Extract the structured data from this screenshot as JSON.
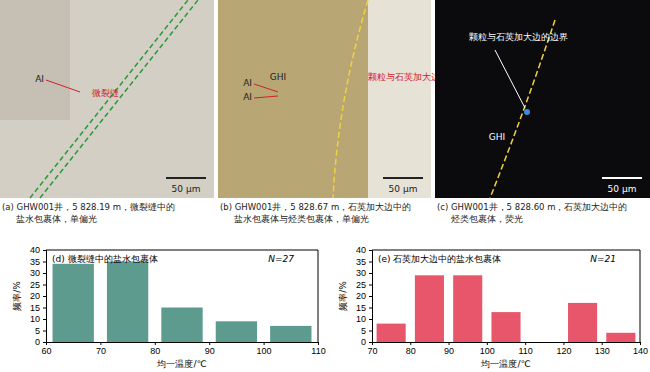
{
  "chart_data": [
    {
      "type": "histogram",
      "title": "(d) 微裂缝中的盐水包裹体",
      "annotation": "N=27",
      "x_label": "均一温度/℃",
      "y_label": "频率/%",
      "bins": [
        60,
        70,
        80,
        90,
        100,
        110
      ],
      "values": [
        34,
        35,
        15,
        9,
        7
      ],
      "color": "#5e9b8f",
      "xlim": [
        60,
        110
      ],
      "xticks": [
        60,
        70,
        80,
        90,
        100,
        110
      ],
      "ylim": [
        0,
        40
      ],
      "yticks": [
        0,
        5,
        10,
        15,
        20,
        25,
        30,
        35,
        40
      ]
    },
    {
      "type": "histogram",
      "title": "(e) 石英加大边中的盐水包裹体",
      "annotation": "N=21",
      "x_label": "均一温度/℃",
      "y_label": "频率/%",
      "bins": [
        70,
        80,
        90,
        100,
        110,
        120,
        130,
        140
      ],
      "values": [
        8,
        29,
        29,
        13,
        0,
        17,
        4
      ],
      "color": "#e8566b",
      "xlim": [
        70,
        140
      ],
      "xticks": [
        70,
        80,
        90,
        100,
        110,
        120,
        130,
        140
      ],
      "ylim": [
        0,
        40
      ],
      "yticks": [
        0,
        5,
        10,
        15,
        20,
        25,
        30,
        35,
        40
      ]
    }
  ],
  "images": [
    {
      "caption": [
        "(a) GHW001井，5 828.19 m，微裂缝中的",
        "盐水包裹体，单偏光"
      ],
      "labels": [
        "AI",
        "微裂缝"
      ],
      "scale_bar": "50 μm"
    },
    {
      "caption": [
        "(b) GHW001井，5 828.67 m，石英加大边中的",
        "盐水包裹体与烃类包裹体，单偏光"
      ],
      "labels": [
        "AI",
        "AI",
        "GHI",
        "颗粒与石英加大边的边界"
      ],
      "scale_bar": "50 μm"
    },
    {
      "caption": [
        "(c) GHW001井，5 828.60 m，石英加大边中的",
        "烃类包裹体，荧光"
      ],
      "labels": [
        "颗粒与石英加大边的边界",
        "GHI"
      ],
      "scale_bar": "50 μm"
    }
  ]
}
